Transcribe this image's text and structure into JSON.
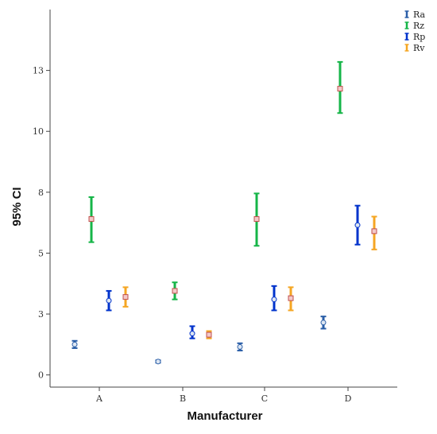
{
  "chart_data": {
    "type": "errorbar",
    "xlabel": "Manufacturer",
    "ylabel": "95% CI",
    "categories": [
      "A",
      "B",
      "C",
      "D"
    ],
    "ylim": [
      -0.5,
      15.0
    ],
    "y_tick_values": [
      0,
      2.5,
      5,
      7.5,
      10,
      12.5
    ],
    "y_tick_labels": [
      "0",
      "3",
      "5",
      "8",
      "10",
      "13"
    ],
    "legend_position": "top-right",
    "series": [
      {
        "name": "Ra",
        "color": "#2b5fa8",
        "marker": "circle",
        "mean": [
          1.25,
          0.55,
          1.15,
          2.15
        ],
        "lower": [
          1.1,
          0.5,
          1.0,
          1.9
        ],
        "upper": [
          1.4,
          0.6,
          1.3,
          2.4
        ]
      },
      {
        "name": "Rz",
        "color": "#16b548",
        "marker": "square",
        "mean": [
          6.4,
          3.45,
          6.4,
          11.75
        ],
        "lower": [
          5.45,
          3.1,
          5.3,
          10.75
        ],
        "upper": [
          7.3,
          3.8,
          7.45,
          12.85
        ]
      },
      {
        "name": "Rp",
        "color": "#0033cc",
        "marker": "circle",
        "mean": [
          3.05,
          1.7,
          3.1,
          6.15
        ],
        "lower": [
          2.65,
          1.5,
          2.65,
          5.35
        ],
        "upper": [
          3.45,
          2.0,
          3.65,
          6.95
        ]
      },
      {
        "name": "Rv",
        "color": "#f5a623",
        "marker": "square",
        "mean": [
          3.2,
          1.65,
          3.15,
          5.9
        ],
        "lower": [
          2.8,
          1.5,
          2.65,
          5.15
        ],
        "upper": [
          3.6,
          1.8,
          3.6,
          6.5
        ]
      }
    ]
  }
}
